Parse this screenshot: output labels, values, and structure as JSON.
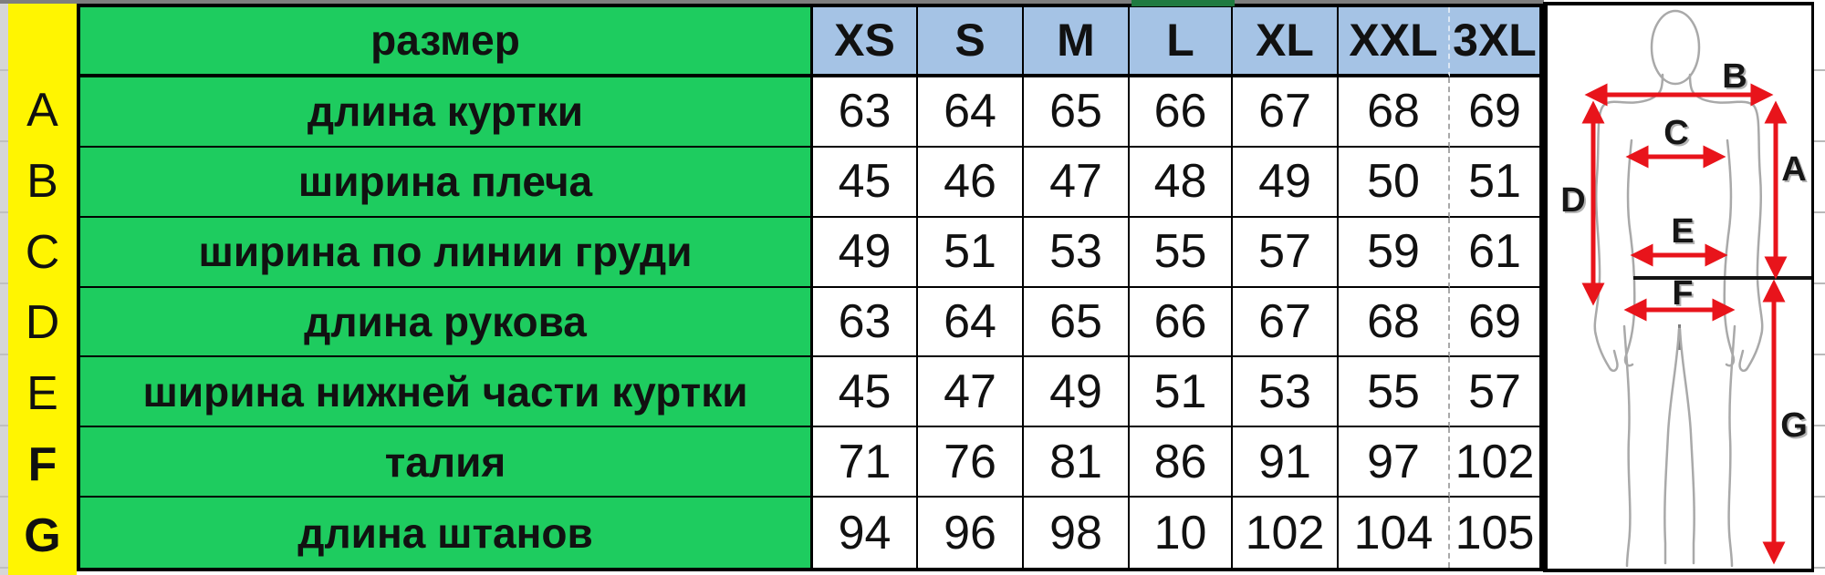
{
  "table": {
    "corner_label": "размер",
    "size_headers": [
      "XS",
      "S",
      "M",
      "L",
      "XL",
      "XXL",
      "3XL"
    ],
    "rows": [
      {
        "letter": "A",
        "label": "длина куртки",
        "values": [
          "63",
          "64",
          "65",
          "66",
          "67",
          "68",
          "69"
        ]
      },
      {
        "letter": "B",
        "label": "ширина плеча",
        "values": [
          "45",
          "46",
          "47",
          "48",
          "49",
          "50",
          "51"
        ]
      },
      {
        "letter": "C",
        "label": "ширина по линии груди",
        "values": [
          "49",
          "51",
          "53",
          "55",
          "57",
          "59",
          "61"
        ]
      },
      {
        "letter": "D",
        "label": "длина рукова",
        "values": [
          "63",
          "64",
          "65",
          "66",
          "67",
          "68",
          "69"
        ]
      },
      {
        "letter": "E",
        "label": "ширина нижней части куртки",
        "values": [
          "45",
          "47",
          "49",
          "51",
          "53",
          "55",
          "57"
        ]
      },
      {
        "letter": "F",
        "label": "талия",
        "values": [
          "71",
          "76",
          "81",
          "86",
          "91",
          "97",
          "102"
        ]
      },
      {
        "letter": "G",
        "label": "длина штанов",
        "values": [
          "94",
          "96",
          "98",
          "10",
          "102",
          "104",
          "105"
        ]
      }
    ]
  },
  "diagram": {
    "labels": [
      "A",
      "B",
      "C",
      "D",
      "E",
      "F",
      "G"
    ]
  },
  "colors": {
    "row_letter_yellow": "#FFF501",
    "label_green": "#1ECC5F",
    "header_blue": "#A5C3E5",
    "arrow_red": "#E8141B",
    "top_accent_green": "#1F7A40"
  }
}
